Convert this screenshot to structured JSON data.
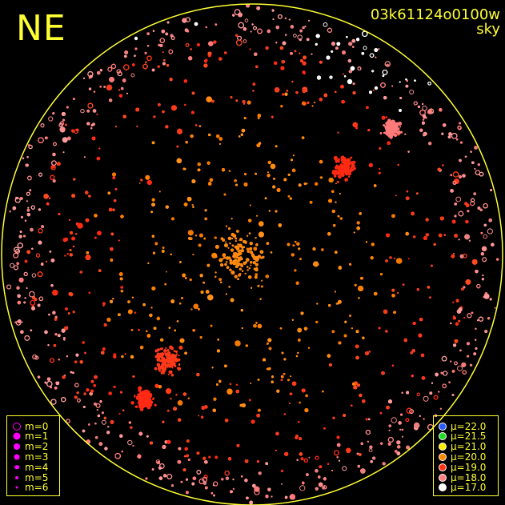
{
  "corner_label": "NE",
  "image_id": "03k61124o0100w",
  "image_kind": "sky",
  "colors": {
    "annotation": "#ffff33",
    "horizon_circle": "#ffff33",
    "background": "#000000"
  },
  "magnitude_legend": {
    "entries": [
      {
        "label": "m=0",
        "symbol": "open-ring",
        "color": "#ff00ff"
      },
      {
        "label": "m=1",
        "symbol": "filled-dot",
        "color": "#ff00ff"
      },
      {
        "label": "m=2",
        "symbol": "filled-dot",
        "color": "#ff00ff"
      },
      {
        "label": "m=3",
        "symbol": "filled-dot",
        "color": "#ff00ff"
      },
      {
        "label": "m=4",
        "symbol": "filled-dot",
        "color": "#ff00ff"
      },
      {
        "label": "m=5",
        "symbol": "filled-dot",
        "color": "#ff00ff"
      },
      {
        "label": "m=6",
        "symbol": "filled-dot",
        "color": "#ff00ff"
      }
    ]
  },
  "mu_legend": {
    "symbol": "μ",
    "entries": [
      {
        "value": "22.0",
        "color": "#2a5cff"
      },
      {
        "value": "21.5",
        "color": "#22dd22"
      },
      {
        "value": "21.0",
        "color": "#ffee00"
      },
      {
        "value": "20.0",
        "color": "#ff8800"
      },
      {
        "value": "19.0",
        "color": "#ff3311"
      },
      {
        "value": "18.0",
        "color": "#ff7f7f"
      },
      {
        "value": "17.0",
        "color": "#ffffff"
      }
    ]
  },
  "chart_data": {
    "type": "scatter",
    "description_of_encoding": "all-sky fisheye projection of detected stars; marker color encodes sky brightness mu (mag/arcsec^2), marker size encodes star magnitude m",
    "projection": "fisheye all-sky, zenith at center",
    "orientation": "NE",
    "mu_scale": [
      22.0,
      21.5,
      21.0,
      20.0,
      19.0,
      18.0,
      17.0
    ],
    "magnitude_scale": [
      0,
      1,
      2,
      3,
      4,
      5,
      6
    ],
    "sky_brightness_regions": [
      {
        "region": "central zenith area",
        "approx_mu": 20.0
      },
      {
        "region": "middle annulus",
        "approx_mu": 19.0
      },
      {
        "region": "outer annulus near horizon",
        "approx_mu": 18.0
      },
      {
        "region": "upper-right horizon glow",
        "approx_mu": 17.0
      }
    ],
    "grid": false,
    "legend_placement": [
      "bottom-left",
      "bottom-right"
    ]
  }
}
